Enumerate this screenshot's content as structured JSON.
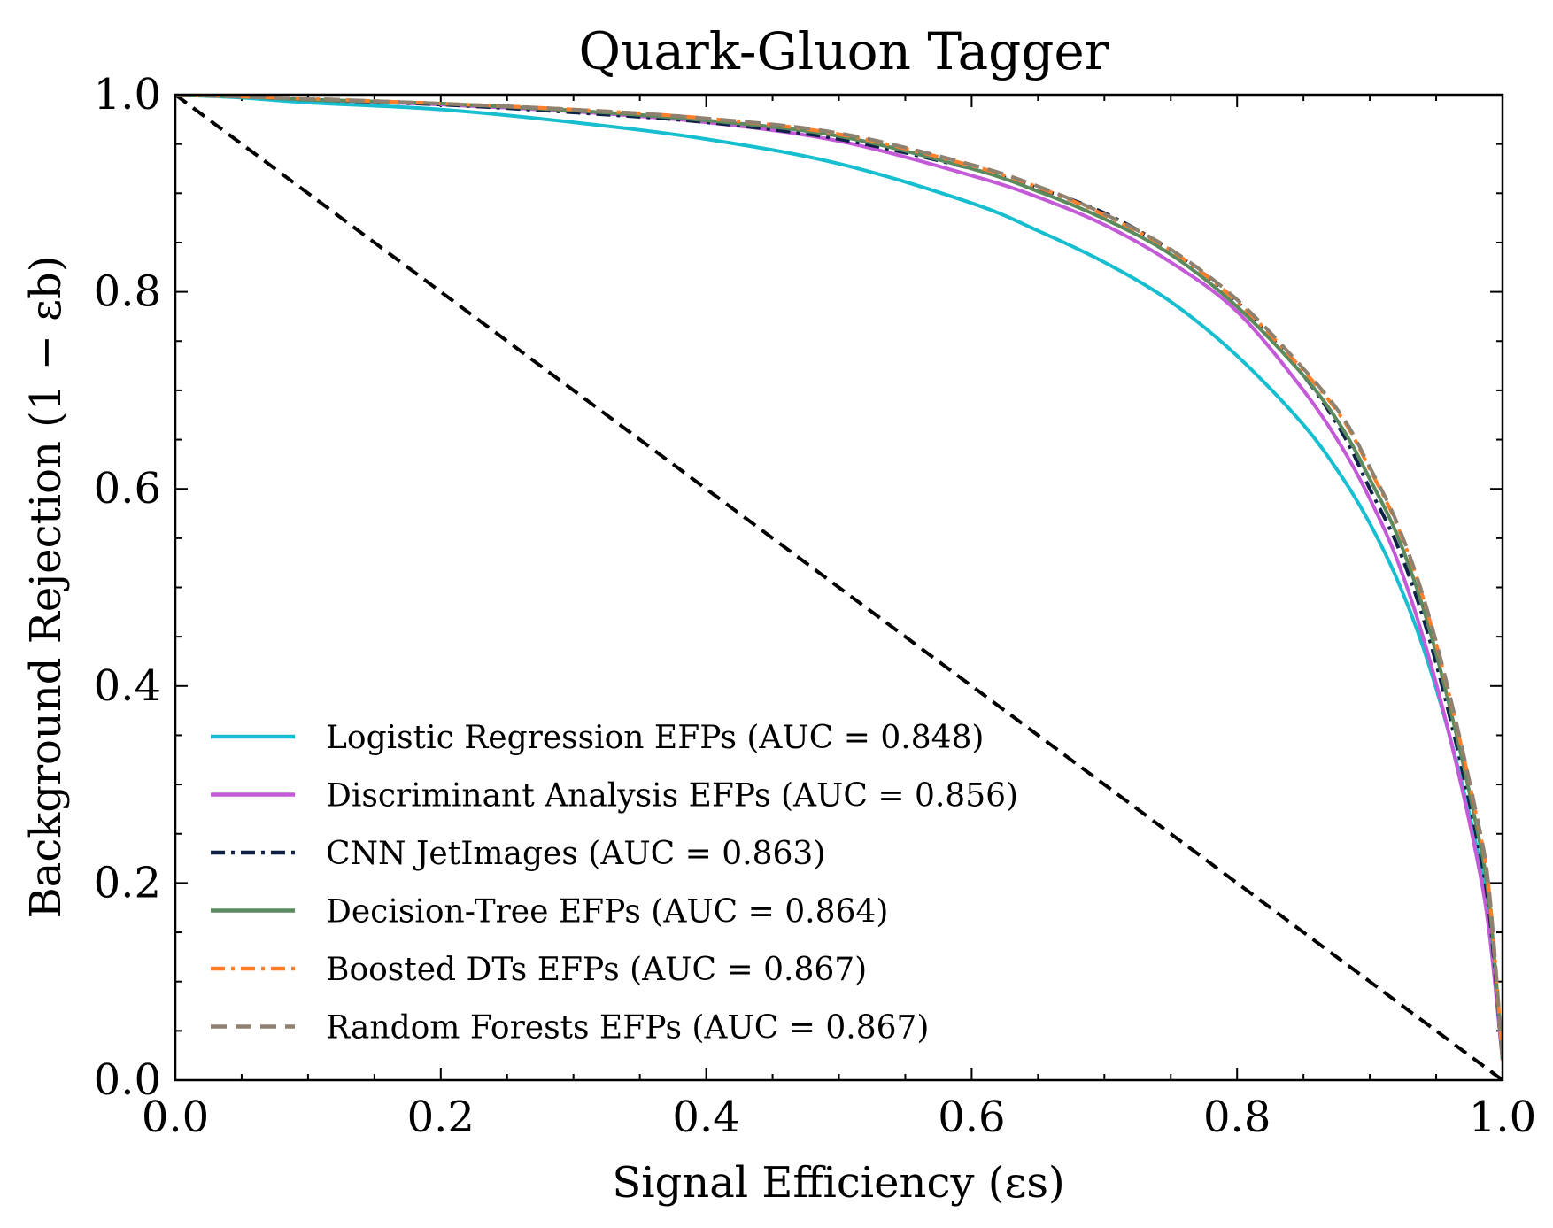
{
  "chart_data": {
    "type": "line",
    "title": "Quark-Gluon Tagger",
    "xlabel": "Signal Efficiency (εs)",
    "ylabel": "Background Rejection (1 − εb)",
    "xlim": [
      0,
      1
    ],
    "ylim": [
      0,
      1
    ],
    "x_ticks": [
      0.0,
      0.2,
      0.4,
      0.6,
      0.8,
      1.0
    ],
    "y_ticks": [
      0.0,
      0.2,
      0.4,
      0.6,
      0.8,
      1.0
    ],
    "x_tick_labels": [
      "0.0",
      "0.2",
      "0.4",
      "0.6",
      "0.8",
      "1.0"
    ],
    "y_tick_labels": [
      "0.0",
      "0.2",
      "0.4",
      "0.6",
      "0.8",
      "1.0"
    ],
    "grid": false,
    "legend_position": "lower-left",
    "diagonal": {
      "x": [
        0,
        1
      ],
      "y": [
        1,
        0
      ],
      "color": "#000000",
      "dash": "dashed"
    },
    "series": [
      {
        "name": "Logistic Regression EFPs (AUC = 0.848)",
        "color": "#17becf",
        "dash": "solid",
        "x": [
          0,
          0.05,
          0.1,
          0.2,
          0.3,
          0.4,
          0.5,
          0.6,
          0.65,
          0.7,
          0.75,
          0.8,
          0.85,
          0.88,
          0.9,
          0.92,
          0.94,
          0.96,
          0.98,
          0.99,
          1.0
        ],
        "y": [
          1.0,
          0.997,
          0.992,
          0.985,
          0.972,
          0.955,
          0.93,
          0.89,
          0.862,
          0.83,
          0.79,
          0.735,
          0.665,
          0.61,
          0.565,
          0.51,
          0.44,
          0.35,
          0.24,
          0.16,
          0.02
        ]
      },
      {
        "name": "Discriminant Analysis EFPs (AUC = 0.856)",
        "color": "#c45ad8",
        "dash": "solid",
        "x": [
          0,
          0.05,
          0.1,
          0.2,
          0.3,
          0.4,
          0.5,
          0.6,
          0.65,
          0.7,
          0.75,
          0.8,
          0.85,
          0.88,
          0.9,
          0.92,
          0.94,
          0.96,
          0.98,
          0.99,
          1.0
        ],
        "y": [
          1.0,
          0.998,
          0.995,
          0.99,
          0.983,
          0.972,
          0.953,
          0.918,
          0.896,
          0.868,
          0.83,
          0.78,
          0.7,
          0.64,
          0.59,
          0.53,
          0.45,
          0.35,
          0.23,
          0.15,
          0.02
        ]
      },
      {
        "name": "CNN JetImages (AUC = 0.863)",
        "color": "#0f2147",
        "dash": "dashdot",
        "x": [
          0,
          0.05,
          0.1,
          0.2,
          0.3,
          0.4,
          0.5,
          0.6,
          0.65,
          0.7,
          0.75,
          0.8,
          0.85,
          0.88,
          0.9,
          0.92,
          0.94,
          0.96,
          0.98,
          0.99,
          1.0
        ],
        "y": [
          1.0,
          0.998,
          0.995,
          0.99,
          0.982,
          0.972,
          0.955,
          0.925,
          0.905,
          0.88,
          0.842,
          0.79,
          0.715,
          0.655,
          0.6,
          0.545,
          0.47,
          0.37,
          0.25,
          0.17,
          0.02
        ]
      },
      {
        "name": "Decision-Tree EFPs (AUC = 0.864)",
        "color": "#5a8a5e",
        "dash": "solid",
        "x": [
          0,
          0.05,
          0.1,
          0.2,
          0.3,
          0.4,
          0.5,
          0.6,
          0.65,
          0.7,
          0.75,
          0.8,
          0.85,
          0.88,
          0.9,
          0.92,
          0.94,
          0.96,
          0.98,
          0.99,
          1.0
        ],
        "y": [
          1.0,
          0.998,
          0.995,
          0.991,
          0.984,
          0.974,
          0.958,
          0.925,
          0.902,
          0.874,
          0.838,
          0.785,
          0.715,
          0.66,
          0.61,
          0.555,
          0.48,
          0.38,
          0.26,
          0.18,
          0.02
        ]
      },
      {
        "name": "Boosted DTs EFPs (AUC = 0.867)",
        "color": "#ff7f2a",
        "dash": "dashdot",
        "x": [
          0,
          0.05,
          0.1,
          0.2,
          0.3,
          0.4,
          0.5,
          0.6,
          0.65,
          0.7,
          0.75,
          0.8,
          0.85,
          0.88,
          0.9,
          0.92,
          0.94,
          0.96,
          0.98,
          0.99,
          1.0
        ],
        "y": [
          1.0,
          0.998,
          0.996,
          0.991,
          0.985,
          0.976,
          0.96,
          0.928,
          0.906,
          0.878,
          0.842,
          0.79,
          0.72,
          0.67,
          0.62,
          0.565,
          0.49,
          0.39,
          0.27,
          0.19,
          0.02
        ]
      },
      {
        "name": "Random Forests EFPs (AUC = 0.867)",
        "color": "#8f8170",
        "dash": "dashed",
        "x": [
          0,
          0.05,
          0.1,
          0.2,
          0.3,
          0.4,
          0.5,
          0.6,
          0.65,
          0.7,
          0.75,
          0.8,
          0.85,
          0.88,
          0.9,
          0.92,
          0.94,
          0.96,
          0.98,
          0.99,
          1.0
        ],
        "y": [
          1.0,
          0.998,
          0.996,
          0.991,
          0.985,
          0.976,
          0.961,
          0.929,
          0.907,
          0.879,
          0.843,
          0.792,
          0.722,
          0.672,
          0.622,
          0.567,
          0.492,
          0.392,
          0.272,
          0.192,
          0.02
        ]
      }
    ]
  }
}
